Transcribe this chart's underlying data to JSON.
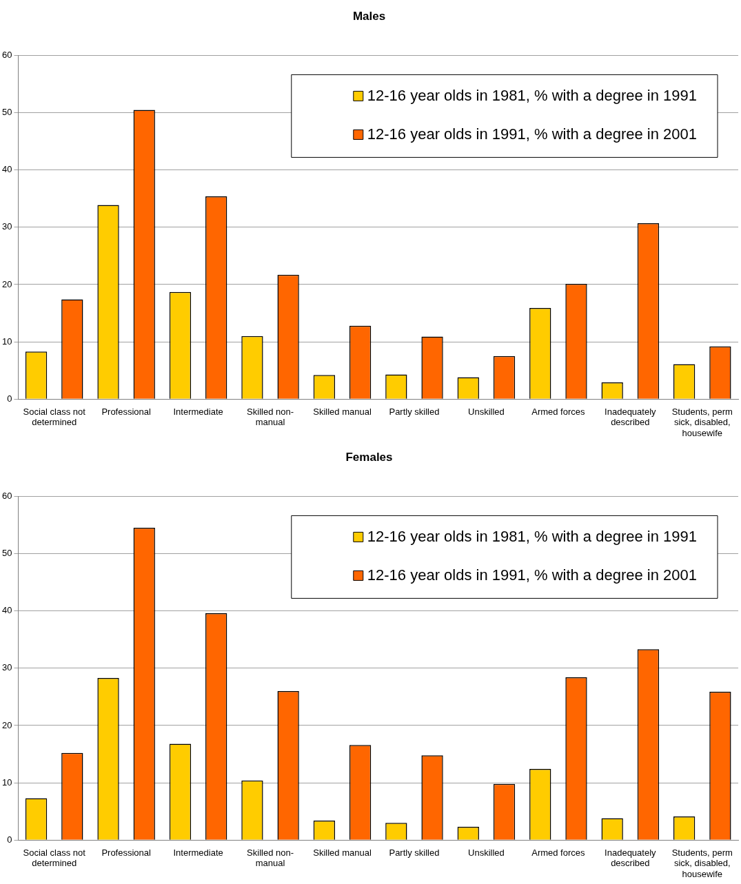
{
  "chart_data": [
    {
      "type": "bar",
      "title": "Males",
      "categories": [
        "Social class not determined",
        "Professional",
        "Intermediate",
        "Skilled non-manual",
        "Skilled manual",
        "Partly skilled",
        "Unskilled",
        "Armed forces",
        "Inadequately described",
        "Students, perm sick, disabled, housewife"
      ],
      "series": [
        {
          "name": "12-16 year olds in 1981, % with a degree in 1991",
          "color": "#ffcc00",
          "values": [
            8.3,
            33.9,
            18.7,
            11.0,
            4.2,
            4.3,
            3.8,
            15.9,
            2.9,
            6.1
          ]
        },
        {
          "name": "12-16 year olds in 1991, % with a degree in 2001",
          "color": "#ff6600",
          "values": [
            17.4,
            50.5,
            35.4,
            21.7,
            12.8,
            10.9,
            7.5,
            20.1,
            30.7,
            9.2
          ]
        }
      ],
      "ylim": [
        0,
        60
      ],
      "yticks": [
        0,
        10,
        20,
        30,
        40,
        50,
        60
      ],
      "grid": "y",
      "legend": "top right"
    },
    {
      "type": "bar",
      "title": "Females",
      "categories": [
        "Social class not determined",
        "Professional",
        "Intermediate",
        "Skilled non-manual",
        "Skilled manual",
        "Partly skilled",
        "Unskilled",
        "Armed forces",
        "Inadequately described",
        "Students, perm sick, disabled, housewife"
      ],
      "series": [
        {
          "name": "12-16 year olds in 1981, % with a degree in 1991",
          "color": "#ffcc00",
          "values": [
            7.3,
            28.3,
            16.8,
            10.4,
            3.4,
            3.0,
            2.3,
            12.4,
            3.8,
            4.1
          ]
        },
        {
          "name": "12-16 year olds in 1991, % with a degree in 2001",
          "color": "#ff6600",
          "values": [
            15.2,
            54.5,
            39.6,
            26.0,
            16.6,
            14.8,
            9.8,
            28.4,
            33.3,
            25.9
          ]
        }
      ],
      "ylim": [
        0,
        60
      ],
      "yticks": [
        0,
        10,
        20,
        30,
        40,
        50,
        60
      ],
      "grid": "y",
      "legend": "top right"
    }
  ]
}
